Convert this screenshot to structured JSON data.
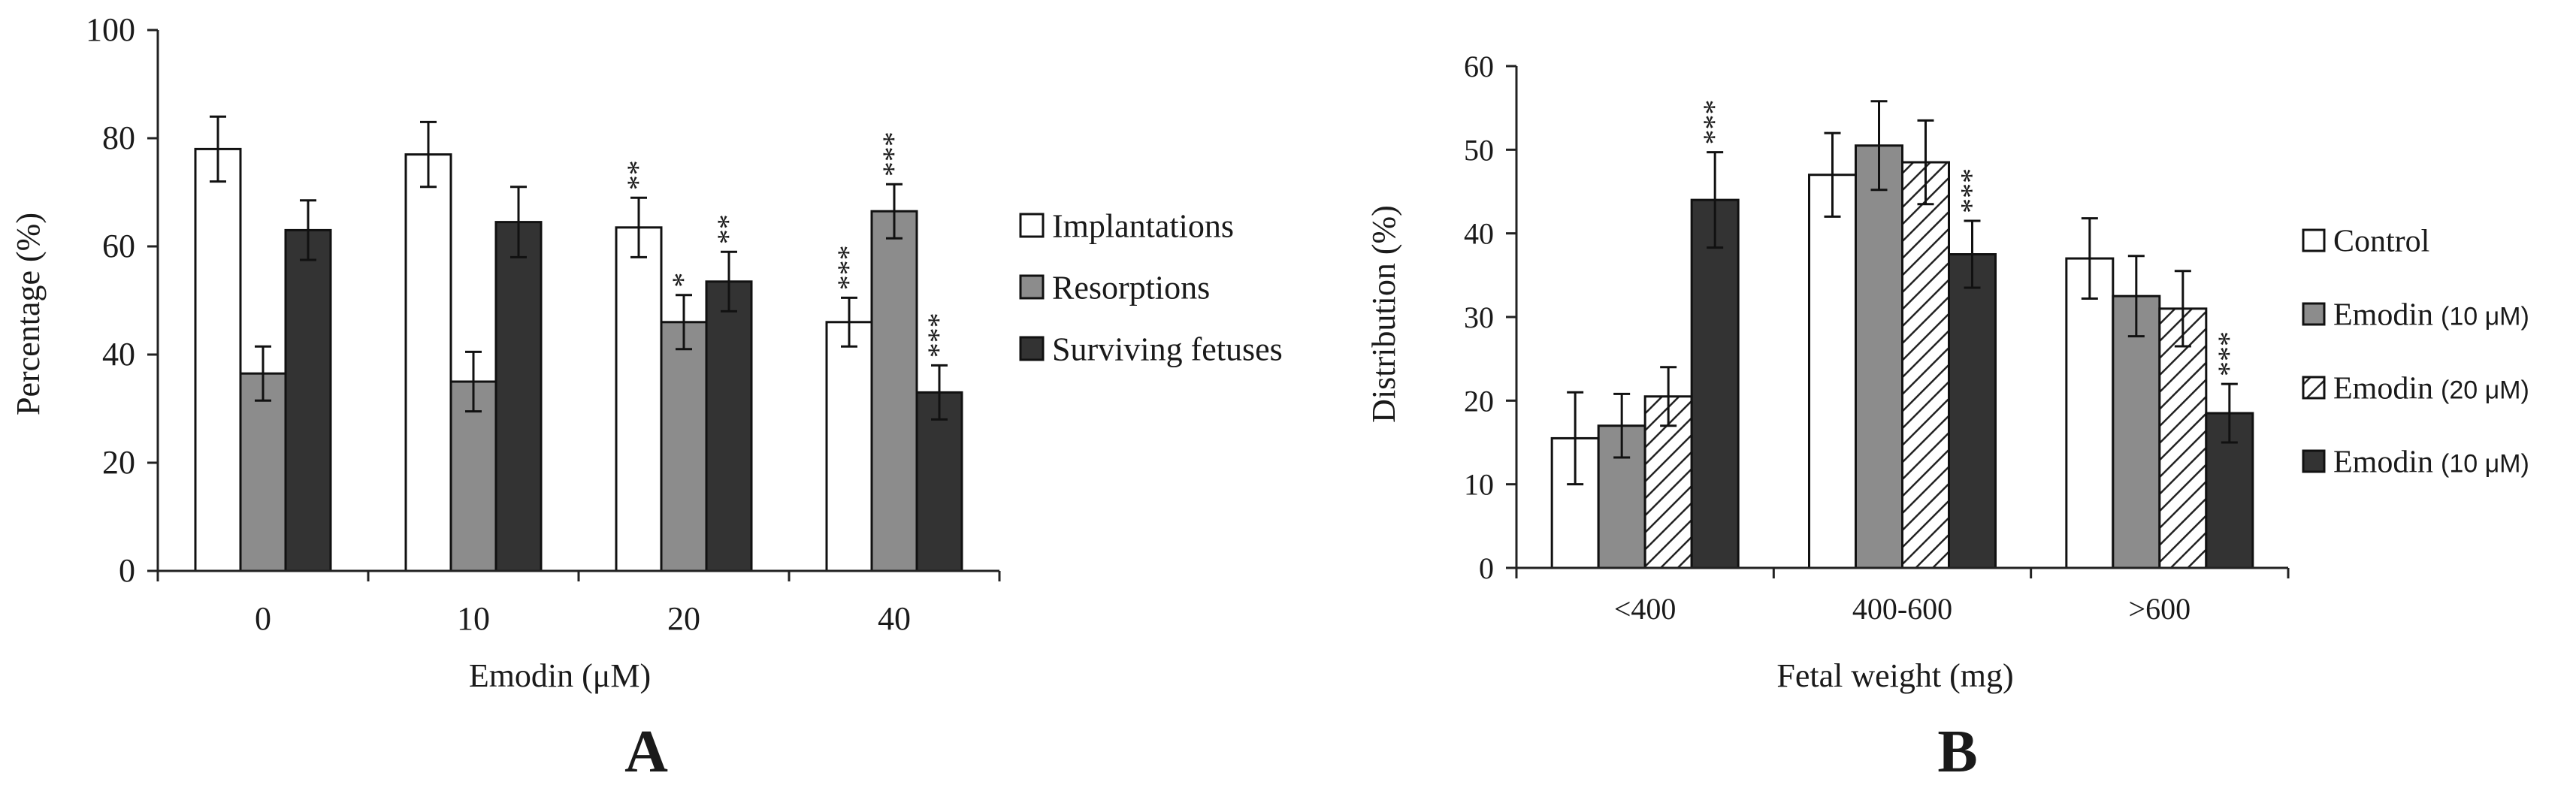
{
  "chart_data": [
    {
      "panel_label": "A",
      "type": "bar",
      "title": "",
      "xlabel": "Emodin (μM)",
      "ylabel": "Percentage (%)",
      "ylim": [
        0,
        100
      ],
      "yticks": [
        "0",
        "20",
        "40",
        "60",
        "80",
        "100"
      ],
      "categories": [
        "0",
        "10",
        "20",
        "40"
      ],
      "legend_position": "right",
      "grid": false,
      "series": [
        {
          "name": "Implantations",
          "fill": "white",
          "color": "#ffffff",
          "values": [
            78,
            77,
            63.5,
            46
          ],
          "errors": [
            6,
            6,
            5.5,
            4.5
          ],
          "sig": [
            "",
            "",
            "**",
            "***"
          ]
        },
        {
          "name": "Resorptions",
          "fill": "gray",
          "color": "#8c8c8c",
          "values": [
            36.5,
            35,
            46,
            66.5
          ],
          "errors": [
            5,
            5.5,
            5,
            5
          ],
          "sig": [
            "",
            "",
            "*",
            "***"
          ]
        },
        {
          "name": "Surviving fetuses",
          "fill": "dark",
          "color": "#333333",
          "values": [
            63,
            64.5,
            53.5,
            33
          ],
          "errors": [
            5.5,
            6.5,
            5.5,
            5
          ],
          "sig": [
            "",
            "",
            "**",
            "***"
          ]
        }
      ]
    },
    {
      "panel_label": "B",
      "type": "bar",
      "title": "",
      "xlabel": "Fetal weight (mg)",
      "ylabel": "Distribution (%)",
      "ylim": [
        0,
        60
      ],
      "yticks": [
        "0",
        "10",
        "20",
        "30",
        "40",
        "50",
        "60"
      ],
      "categories": [
        "<400",
        "400-600",
        ">600"
      ],
      "legend_position": "right",
      "grid": false,
      "series": [
        {
          "name": "Control",
          "unit": "",
          "fill": "white",
          "color": "#ffffff",
          "values": [
            15.5,
            47,
            37
          ],
          "errors": [
            5.5,
            5,
            4.8
          ],
          "sig": [
            "",
            "",
            ""
          ]
        },
        {
          "name": "Emodin",
          "unit": "(10 μM)",
          "fill": "gray",
          "color": "#8c8c8c",
          "values": [
            17,
            50.5,
            32.5
          ],
          "errors": [
            3.8,
            5.3,
            4.8
          ],
          "sig": [
            "",
            "",
            ""
          ]
        },
        {
          "name": "Emodin",
          "unit": "(20 μM)",
          "fill": "hatch",
          "color": "#ffffff",
          "values": [
            20.5,
            48.5,
            31
          ],
          "errors": [
            3.5,
            5,
            4.5
          ],
          "sig": [
            "",
            "",
            ""
          ]
        },
        {
          "name": "Emodin",
          "unit": "(10 μM)",
          "fill": "dark",
          "color": "#333333",
          "values": [
            44,
            37.5,
            18.5
          ],
          "errors": [
            5.7,
            4,
            3.5
          ],
          "sig": [
            "***",
            "***",
            "***"
          ]
        }
      ]
    }
  ]
}
